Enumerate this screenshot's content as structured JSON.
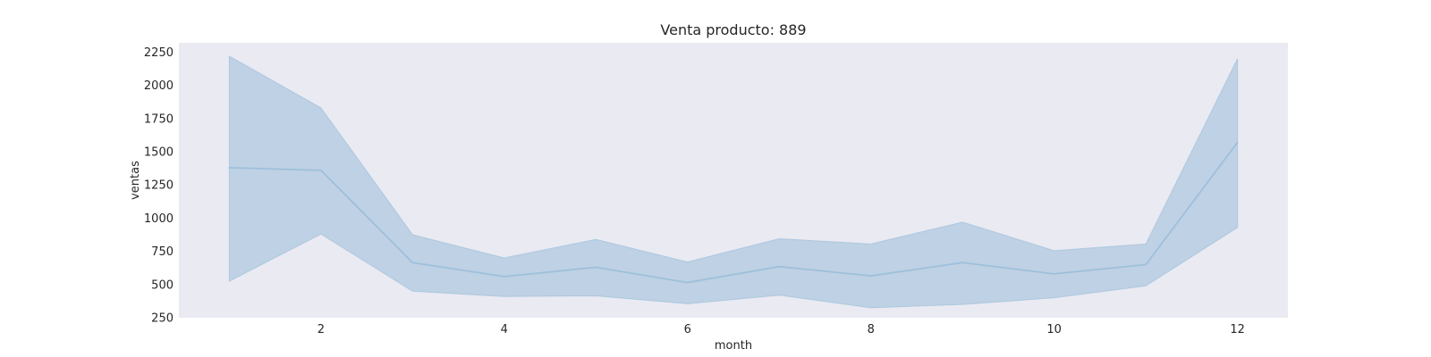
{
  "chart_data": {
    "type": "line",
    "title": "Venta producto: 889",
    "xlabel": "month",
    "ylabel": "ventas",
    "xlim": [
      0.45,
      12.55
    ],
    "ylim": [
      250,
      2320
    ],
    "xticks": [
      2,
      4,
      6,
      8,
      10,
      12
    ],
    "yticks": [
      250,
      500,
      750,
      1000,
      1250,
      1500,
      1750,
      2000,
      2250
    ],
    "grid": false,
    "colors": {
      "plot_background": "#eaeaf2",
      "line": "#9ec0dc",
      "band": "#b7cde2"
    },
    "series": [
      {
        "x": [
          1,
          2,
          3,
          4,
          5,
          6,
          7,
          8,
          9,
          10,
          11,
          12
        ],
        "y": [
          1380,
          1360,
          665,
          560,
          630,
          515,
          635,
          565,
          665,
          580,
          650,
          1570
        ],
        "ci_lower": [
          525,
          880,
          450,
          410,
          415,
          355,
          420,
          325,
          350,
          400,
          490,
          930
        ],
        "ci_upper": [
          2220,
          1830,
          875,
          700,
          840,
          670,
          845,
          805,
          970,
          755,
          805,
          2200
        ]
      }
    ]
  }
}
